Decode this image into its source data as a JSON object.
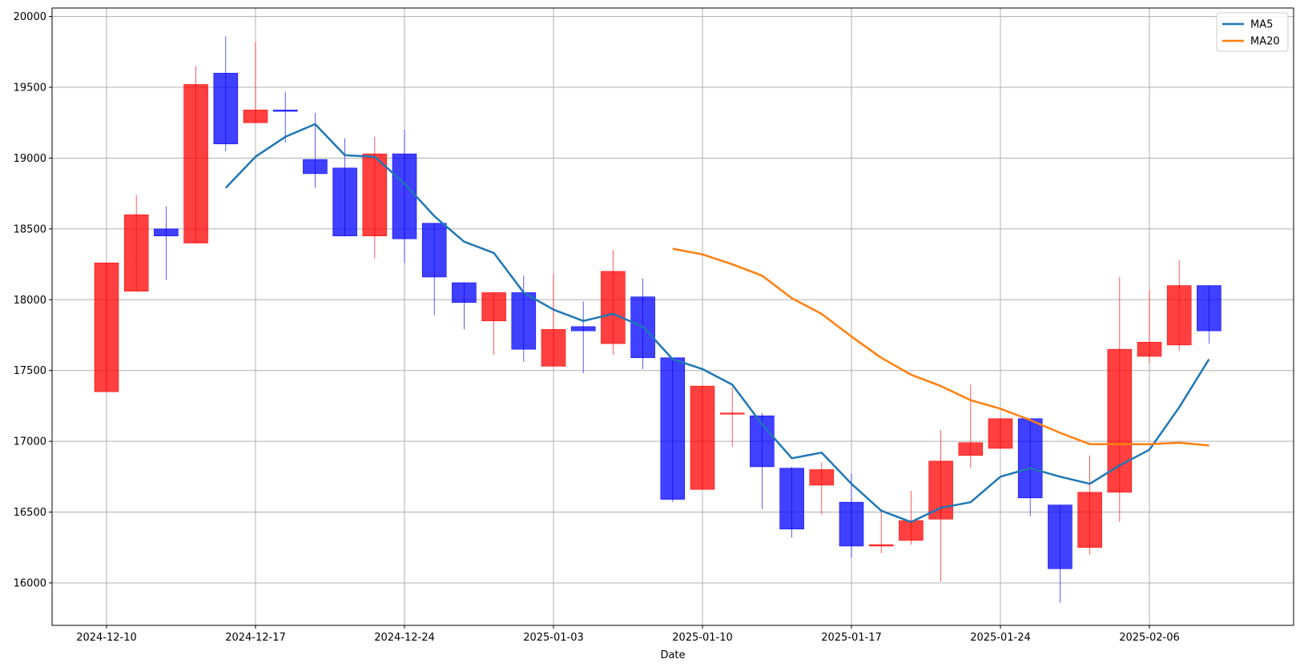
{
  "chart_data": {
    "type": "candlestick",
    "title": "",
    "xlabel": "Date",
    "ylabel": "",
    "ylim": [
      15700,
      20060
    ],
    "grid": true,
    "legend_position": "top-right",
    "colors": {
      "up": "#ff0000",
      "down": "#0000ff",
      "ma5": "#1f77b4",
      "ma20": "#ff7f0e"
    },
    "x_ticks": [
      "2024-12-10",
      "2024-12-17",
      "2024-12-24",
      "2025-01-03",
      "2025-01-10",
      "2025-01-17",
      "2025-01-24",
      "2025-02-06"
    ],
    "x_tick_index": [
      0,
      5,
      10,
      15,
      20,
      25,
      30,
      35
    ],
    "y_ticks": [
      16000,
      16500,
      17000,
      17500,
      18000,
      18500,
      19000,
      19500,
      20000
    ],
    "candles": [
      {
        "o": 17350,
        "h": 18260,
        "l": 17350,
        "c": 18260
      },
      {
        "o": 18060,
        "h": 18740,
        "l": 18060,
        "c": 18600
      },
      {
        "o": 18500,
        "h": 18660,
        "l": 18140,
        "c": 18450
      },
      {
        "o": 18400,
        "h": 19650,
        "l": 18400,
        "c": 19520
      },
      {
        "o": 19600,
        "h": 19860,
        "l": 19050,
        "c": 19100
      },
      {
        "o": 19250,
        "h": 19820,
        "l": 19250,
        "c": 19340
      },
      {
        "o": 19340,
        "h": 19470,
        "l": 19110,
        "c": 19330
      },
      {
        "o": 18990,
        "h": 19320,
        "l": 18790,
        "c": 18890
      },
      {
        "o": 18930,
        "h": 19140,
        "l": 18450,
        "c": 18450
      },
      {
        "o": 18450,
        "h": 19150,
        "l": 18290,
        "c": 19030
      },
      {
        "o": 19030,
        "h": 19200,
        "l": 18260,
        "c": 18430
      },
      {
        "o": 18540,
        "h": 18540,
        "l": 17890,
        "c": 18160
      },
      {
        "o": 18120,
        "h": 18120,
        "l": 17790,
        "c": 17980
      },
      {
        "o": 17850,
        "h": 18050,
        "l": 17610,
        "c": 18050
      },
      {
        "o": 18050,
        "h": 18170,
        "l": 17560,
        "c": 17650
      },
      {
        "o": 17530,
        "h": 18180,
        "l": 17530,
        "c": 17790
      },
      {
        "o": 17810,
        "h": 17990,
        "l": 17480,
        "c": 17780
      },
      {
        "o": 17690,
        "h": 18350,
        "l": 17610,
        "c": 18200
      },
      {
        "o": 18020,
        "h": 18150,
        "l": 17510,
        "c": 17590
      },
      {
        "o": 17590,
        "h": 17590,
        "l": 16570,
        "c": 16590
      },
      {
        "o": 16660,
        "h": 17390,
        "l": 16660,
        "c": 17390
      },
      {
        "o": 17200,
        "h": 17380,
        "l": 16960,
        "c": 17200
      },
      {
        "o": 17180,
        "h": 17200,
        "l": 16520,
        "c": 16820
      },
      {
        "o": 16810,
        "h": 16820,
        "l": 16320,
        "c": 16380
      },
      {
        "o": 16690,
        "h": 16850,
        "l": 16480,
        "c": 16800
      },
      {
        "o": 16570,
        "h": 16770,
        "l": 16180,
        "c": 16260
      },
      {
        "o": 16260,
        "h": 16510,
        "l": 16210,
        "c": 16270
      },
      {
        "o": 16300,
        "h": 16650,
        "l": 16270,
        "c": 16440
      },
      {
        "o": 16450,
        "h": 17080,
        "l": 16010,
        "c": 16860
      },
      {
        "o": 16900,
        "h": 17400,
        "l": 16810,
        "c": 16990
      },
      {
        "o": 16950,
        "h": 17160,
        "l": 16950,
        "c": 17160
      },
      {
        "o": 17160,
        "h": 17160,
        "l": 16470,
        "c": 16600
      },
      {
        "o": 16550,
        "h": 16550,
        "l": 15860,
        "c": 16100
      },
      {
        "o": 16250,
        "h": 16900,
        "l": 16200,
        "c": 16640
      },
      {
        "o": 16640,
        "h": 18160,
        "l": 16430,
        "c": 17650
      },
      {
        "o": 17600,
        "h": 18070,
        "l": 17550,
        "c": 17700
      },
      {
        "o": 17680,
        "h": 18280,
        "l": 17640,
        "c": 18100
      },
      {
        "o": 18100,
        "h": 18100,
        "l": 17690,
        "c": 17780
      }
    ],
    "series": [
      {
        "name": "MA5",
        "start_index": 4,
        "values": [
          18790,
          19010,
          19150,
          19240,
          19020,
          19010,
          18820,
          18590,
          18410,
          18330,
          18050,
          17930,
          17850,
          17900,
          17810,
          17580,
          17510,
          17400,
          17120,
          16880,
          16920,
          16700,
          16510,
          16430,
          16530,
          16570,
          16750,
          16810,
          16750,
          16700,
          16830,
          16940,
          17240,
          17580
        ]
      },
      {
        "name": "MA20",
        "start_index": 19,
        "values": [
          18360,
          18320,
          18250,
          18170,
          18010,
          17900,
          17740,
          17590,
          17470,
          17390,
          17290,
          17230,
          17150,
          17060,
          16980,
          16980,
          16980,
          16990,
          16970
        ]
      }
    ]
  }
}
